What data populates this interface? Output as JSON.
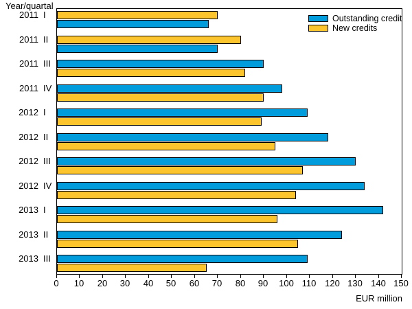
{
  "chart_data": {
    "type": "bar",
    "orientation": "horizontal",
    "axis_title": "Year/quartal",
    "xlabel": "EUR million",
    "xlim": [
      0,
      150
    ],
    "xticks": [
      0,
      10,
      20,
      30,
      40,
      50,
      60,
      70,
      80,
      90,
      100,
      110,
      120,
      130,
      140,
      150
    ],
    "legend_position": "top-right-inside",
    "grid": false,
    "series": [
      {
        "name": "Outstanding credit",
        "color": "#009CDC"
      },
      {
        "name": "New credits",
        "color": "#FCC52D"
      }
    ],
    "groups": [
      {
        "year": "2011",
        "quarter": "I",
        "bars": [
          {
            "series": "New credits",
            "value": 70
          },
          {
            "series": "Outstanding credit",
            "value": 66
          }
        ]
      },
      {
        "year": "2011",
        "quarter": "II",
        "bars": [
          {
            "series": "New credits",
            "value": 80
          },
          {
            "series": "Outstanding credit",
            "value": 70
          }
        ]
      },
      {
        "year": "2011",
        "quarter": "III",
        "bars": [
          {
            "series": "Outstanding credit",
            "value": 90
          },
          {
            "series": "New credits",
            "value": 82
          }
        ]
      },
      {
        "year": "2011",
        "quarter": "IV",
        "bars": [
          {
            "series": "Outstanding credit",
            "value": 98
          },
          {
            "series": "New credits",
            "value": 90
          }
        ]
      },
      {
        "year": "2012",
        "quarter": "I",
        "bars": [
          {
            "series": "Outstanding credit",
            "value": 109
          },
          {
            "series": "New credits",
            "value": 89
          }
        ]
      },
      {
        "year": "2012",
        "quarter": "II",
        "bars": [
          {
            "series": "Outstanding credit",
            "value": 118
          },
          {
            "series": "New credits",
            "value": 95
          }
        ]
      },
      {
        "year": "2012",
        "quarter": "III",
        "bars": [
          {
            "series": "Outstanding credit",
            "value": 130
          },
          {
            "series": "New credits",
            "value": 107
          }
        ]
      },
      {
        "year": "2012",
        "quarter": "IV",
        "bars": [
          {
            "series": "Outstanding credit",
            "value": 134
          },
          {
            "series": "New credits",
            "value": 104
          }
        ]
      },
      {
        "year": "2013",
        "quarter": "I",
        "bars": [
          {
            "series": "Outstanding credit",
            "value": 142
          },
          {
            "series": "New credits",
            "value": 96
          }
        ]
      },
      {
        "year": "2013",
        "quarter": "II",
        "bars": [
          {
            "series": "Outstanding credit",
            "value": 124
          },
          {
            "series": "New credits",
            "value": 105
          }
        ]
      },
      {
        "year": "2013",
        "quarter": "III",
        "bars": [
          {
            "series": "Outstanding credit",
            "value": 109
          },
          {
            "series": "New credits",
            "value": 65
          }
        ]
      }
    ]
  }
}
